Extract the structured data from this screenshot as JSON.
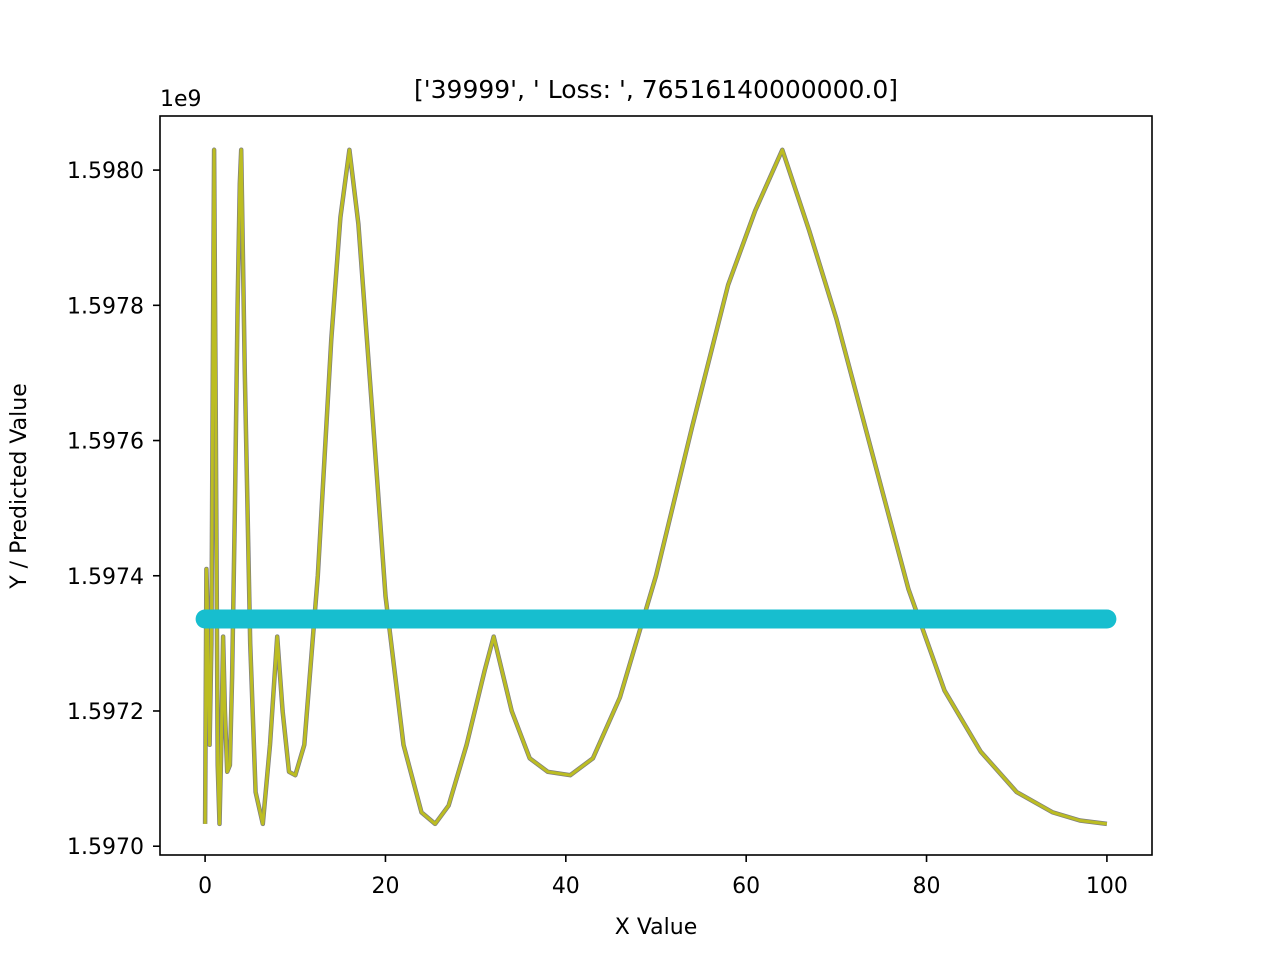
{
  "chart_data": {
    "type": "line",
    "title": "['39999', ' Loss: ', 76516140000000.0]",
    "xlabel": "X Value",
    "ylabel": "Y / Predicted Value",
    "offset_text": "1e9",
    "xlim": [
      -5,
      105
    ],
    "ylim": [
      1.596987,
      1.59808
    ],
    "x_ticks": [
      0,
      20,
      40,
      60,
      80,
      100
    ],
    "y_ticks": [
      1.597,
      1.5972,
      1.5974,
      1.5976,
      1.5978,
      1.598
    ],
    "y_tick_labels": [
      "1.5970",
      "1.5972",
      "1.5974",
      "1.5976",
      "1.5978",
      "1.5980"
    ],
    "grid": false,
    "legend": "none",
    "series": [
      {
        "style": "line",
        "color": "#bcbd22",
        "x": [
          0,
          0.15,
          0.25,
          0.35,
          0.5,
          0.7,
          0.85,
          1.0,
          1.2,
          1.4,
          1.6,
          1.8,
          2.0,
          2.2,
          2.45,
          2.75,
          3.0,
          3.3,
          3.6,
          3.85,
          4.0,
          4.4,
          5.0,
          5.6,
          6.4,
          7.2,
          8.0,
          8.6,
          9.3,
          10.0,
          11.0,
          12.5,
          14.0,
          15.0,
          16.0,
          17.0,
          18.5,
          20.0,
          22.0,
          24.0,
          25.5,
          27.0,
          29.0,
          31.0,
          32.0,
          34.0,
          36.0,
          38.0,
          40.5,
          43.0,
          46.0,
          50.0,
          54.0,
          58.0,
          61.0,
          64.0,
          67.0,
          70.0,
          74.0,
          78.0,
          82.0,
          86.0,
          90.0,
          94.0,
          97.0,
          100.0
        ],
        "y": [
          1.597033,
          1.59741,
          1.59736,
          1.59724,
          1.59715,
          1.5973,
          1.5977,
          1.59803,
          1.5976,
          1.59712,
          1.597033,
          1.59715,
          1.59731,
          1.5972,
          1.59711,
          1.59712,
          1.59725,
          1.5975,
          1.5978,
          1.59798,
          1.59803,
          1.5977,
          1.5973,
          1.59708,
          1.597033,
          1.59715,
          1.59731,
          1.5972,
          1.59711,
          1.597105,
          1.59715,
          1.5974,
          1.59775,
          1.59793,
          1.59803,
          1.59792,
          1.59765,
          1.59737,
          1.59715,
          1.59705,
          1.597033,
          1.59706,
          1.59715,
          1.59726,
          1.59731,
          1.5972,
          1.59713,
          1.59711,
          1.597105,
          1.59713,
          1.59722,
          1.5974,
          1.59762,
          1.59783,
          1.59794,
          1.59803,
          1.59791,
          1.59778,
          1.59758,
          1.59738,
          1.59723,
          1.59714,
          1.59708,
          1.59705,
          1.597038,
          1.597033
        ]
      },
      {
        "style": "thick-line",
        "color": "#17becf",
        "x": [
          0,
          100
        ],
        "y": [
          1.597336,
          1.597336
        ]
      }
    ]
  }
}
